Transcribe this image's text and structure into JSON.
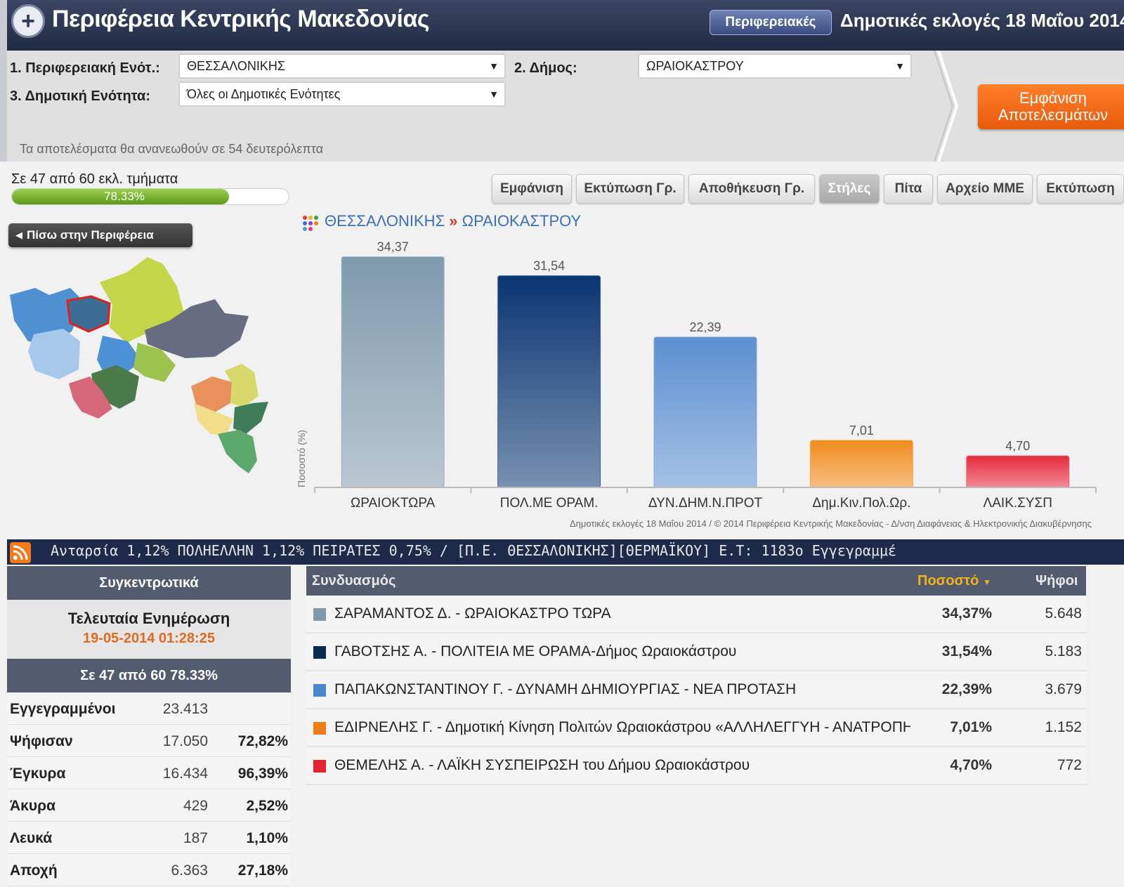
{
  "header": {
    "title": "Περιφέρεια Κεντρικής Μακεδονίας",
    "regional_button": "Περιφερειακές",
    "election_title": "Δημοτικές εκλογές 18 Μαΐου 2014"
  },
  "filters": {
    "regional_unit_label": "1. Περιφερειακή Ενότ.:",
    "regional_unit_value": "ΘΕΣΣΑΛΟΝΙΚΗΣ",
    "municipality_label": "2. Δήμος:",
    "municipality_value": "ΩΡΑΙΟΚΑΣΤΡΟΥ",
    "municipal_unit_label": "3. Δημοτική Ενότητα:",
    "municipal_unit_value": "Όλες οι Δημοτικές Ενότητες",
    "show_results_button": "Εμφάνιση Αποτελεσμάτων",
    "refresh_text": "Τα αποτελέσματα θα ανανεωθούν σε 54 δευτερόλεπτα"
  },
  "progress": {
    "label": "Σε 47 από 60 εκλ. τμήματα",
    "percent_text": "78.33%",
    "fraction": 0.7833
  },
  "toolbar": [
    "Εμφάνιση",
    "Εκτύπωση Γρ.",
    "Αποθήκευση Γρ.",
    "Στήλες",
    "Πίτα",
    "Αρχείο ΜΜΕ",
    "Εκτύπωση"
  ],
  "back_button": "Πίσω στην Περιφέρεια",
  "breadcrumb": {
    "level1": "ΘΕΣΣΑΛΟΝΙΚΗΣ",
    "separator": "»",
    "level2": "ΩΡΑΙΟΚΑΣΤΡΟΥ"
  },
  "chart_data": {
    "type": "bar",
    "categories": [
      "ΩΡΑΙΟΚΤΩΡΑ",
      "ΠΟΛ.ΜΕ ΟΡΑΜ.",
      "ΔΥΝ.ΔΗΜ.Ν.ΠΡΟΤ",
      "Δημ.Κιν.Πολ.Ωρ.",
      "ΛΑΙΚ.ΣΥΣΠ"
    ],
    "values": [
      34.37,
      31.54,
      22.39,
      7.01,
      4.7
    ],
    "value_labels": [
      "34,37",
      "31,54",
      "22,39",
      "7,01",
      "4,70"
    ],
    "colors": [
      "#7f9aad",
      "#0a3572",
      "#5b8fd0",
      "#f08a1c",
      "#e52a3c"
    ],
    "ylabel": "Ποσοστό (%)",
    "ylim": [
      0,
      36
    ],
    "grid": false,
    "credit": "Δημοτικές εκλογές 18 Μαΐου 2014 / © 2014 Περιφέρεια Κεντρικής Μακεδονίας - Δ/νση Διαφάνειας & Ηλεκτρονικής Διακυβέρνησης"
  },
  "ticker": {
    "text": "Ανταρσία 1,12%  ΠΟΛΗΕΛΛΗΝ 1,12%  ΠΕΙΡΑΤΕΣ 0,75%  /  [Π.Ε. ΘΕΣΣΑΛΟΝΙΚΗΣ][ΘΕΡΜΑΪΚΟΥ]  Ε.Τ: 1183ο  Εγγεγραμμέ"
  },
  "summary": {
    "title": "Συγκεντρωτικά",
    "last_update_label": "Τελευταία Ενημέρωση",
    "last_update_time": "19-05-2014 01:28:25",
    "progress_text": "Σε 47 από  60   78.33%",
    "rows": [
      {
        "label": "Εγγεγραμμένοι",
        "count": "23.413",
        "pct": ""
      },
      {
        "label": "Ψήφισαν",
        "count": "17.050",
        "pct": "72,82%"
      },
      {
        "label": "Έγκυρα",
        "count": "16.434",
        "pct": "96,39%"
      },
      {
        "label": "Άκυρα",
        "count": "429",
        "pct": "2,52%"
      },
      {
        "label": "Λευκά",
        "count": "187",
        "pct": "1,10%"
      },
      {
        "label": "Αποχή",
        "count": "6.363",
        "pct": "27,18%"
      }
    ]
  },
  "results": {
    "header_combo": "Συνδυασμός",
    "header_pct": "Ποσοστό",
    "header_votes": "Ψήφοι",
    "rows": [
      {
        "name": "ΣΑΡΑΜΑΝΤΟΣ Δ. - ΩΡΑΙΟΚΑΣΤΡΟ ΤΩΡΑ",
        "pct": "34,37%",
        "votes": "5.648",
        "color": "#7f9aad"
      },
      {
        "name": "ΓΑΒΟΤΣΗΣ Α. - ΠΟΛΙΤΕΙΑ ΜΕ ΟΡΑΜΑ-Δήμος Ωραιοκάστρου",
        "pct": "31,54%",
        "votes": "5.183",
        "color": "#0a2a50"
      },
      {
        "name": "ΠΑΠΑΚΩΝΣΤΑΝΤΙΝΟΥ Γ. - ΔΥΝΑΜΗ ΔΗΜΙΟΥΡΓΙΑΣ - ΝΕΑ ΠΡΟΤΑΣΗ",
        "pct": "22,39%",
        "votes": "3.679",
        "color": "#4a86cc"
      },
      {
        "name": "ΕΔΙΡΝΕΛΗΣ Γ. - Δημοτική Κίνηση Πολιτών Ωραιοκάστρου «ΑΛΛΗΛΕΓΓΥΗ - ΑΝΑΤΡΟΠΗ",
        "pct": "7,01%",
        "votes": "1.152",
        "color": "#ee7d1a"
      },
      {
        "name": "ΘΕΜΕΛΗΣ Α. - ΛΑΪΚΗ ΣΥΣΠΕΙΡΩΣΗ του Δήμου Ωραιοκάστρου",
        "pct": "4,70%",
        "votes": "772",
        "color": "#e32232"
      }
    ]
  }
}
